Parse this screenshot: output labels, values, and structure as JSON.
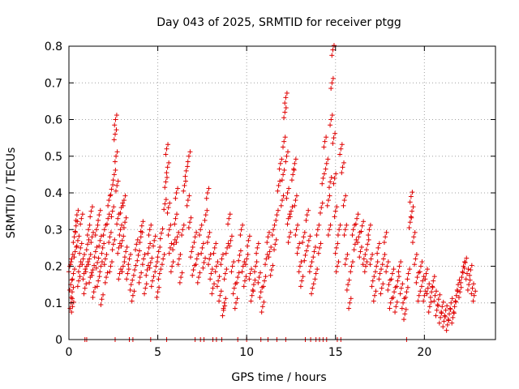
{
  "chart_data": {
    "type": "scatter",
    "title": "Day 043 of 2025, SRMTID for receiver ptgg",
    "xlabel": "GPS time / hours",
    "ylabel": "SRMTID / TECUs",
    "xlim": [
      0,
      24
    ],
    "ylim": [
      0,
      0.8
    ],
    "xticks": [
      0,
      5,
      10,
      15,
      20
    ],
    "yticks": [
      0,
      0.1,
      0.2,
      0.3,
      0.4,
      0.5,
      0.6,
      0.7,
      0.8
    ],
    "grid": true,
    "marker": "plus",
    "series_color": "#e00000",
    "note": "Dense scatter of SRMTID values; points listed as [hour, TECU] approximations.",
    "points": [
      [
        0.05,
        0.2
      ],
      [
        0.1,
        0.15
      ],
      [
        0.12,
        0.1
      ],
      [
        0.15,
        0.22
      ],
      [
        0.18,
        0.13
      ],
      [
        0.2,
        0.09
      ],
      [
        0.25,
        0.18
      ],
      [
        0.3,
        0.28
      ],
      [
        0.35,
        0.24
      ],
      [
        0.4,
        0.31
      ],
      [
        0.45,
        0.34
      ],
      [
        0.5,
        0.27
      ],
      [
        0.55,
        0.16
      ],
      [
        0.6,
        0.2
      ],
      [
        0.65,
        0.25
      ],
      [
        0.7,
        0.33
      ],
      [
        0.8,
        0.22
      ],
      [
        0.85,
        0.18
      ],
      [
        0.9,
        0.14
      ],
      [
        1.0,
        0.2
      ],
      [
        1.05,
        0.26
      ],
      [
        1.1,
        0.3
      ],
      [
        1.15,
        0.22
      ],
      [
        1.2,
        0.17
      ],
      [
        1.25,
        0.35
      ],
      [
        1.3,
        0.28
      ],
      [
        1.35,
        0.19
      ],
      [
        1.4,
        0.13
      ],
      [
        1.5,
        0.24
      ],
      [
        1.55,
        0.3
      ],
      [
        1.6,
        0.21
      ],
      [
        1.65,
        0.16
      ],
      [
        1.7,
        0.34
      ],
      [
        1.75,
        0.27
      ],
      [
        1.8,
        0.2
      ],
      [
        1.85,
        0.11
      ],
      [
        1.9,
        0.25
      ],
      [
        2.0,
        0.3
      ],
      [
        2.05,
        0.22
      ],
      [
        2.1,
        0.17
      ],
      [
        2.2,
        0.33
      ],
      [
        2.25,
        0.38
      ],
      [
        2.3,
        0.28
      ],
      [
        2.35,
        0.2
      ],
      [
        2.4,
        0.41
      ],
      [
        2.45,
        0.35
      ],
      [
        2.5,
        0.26
      ],
      [
        2.55,
        0.45
      ],
      [
        2.6,
        0.56
      ],
      [
        2.62,
        0.6
      ],
      [
        2.65,
        0.5
      ],
      [
        2.7,
        0.42
      ],
      [
        2.75,
        0.33
      ],
      [
        2.8,
        0.25
      ],
      [
        2.85,
        0.18
      ],
      [
        2.9,
        0.3
      ],
      [
        2.95,
        0.36
      ],
      [
        3.0,
        0.27
      ],
      [
        3.05,
        0.2
      ],
      [
        3.1,
        0.38
      ],
      [
        3.15,
        0.32
      ],
      [
        3.2,
        0.24
      ],
      [
        3.3,
        0.18
      ],
      [
        3.4,
        0.22
      ],
      [
        3.5,
        0.15
      ],
      [
        3.6,
        0.12
      ],
      [
        3.7,
        0.19
      ],
      [
        3.8,
        0.26
      ],
      [
        3.9,
        0.23
      ],
      [
        4.0,
        0.17
      ],
      [
        4.05,
        0.28
      ],
      [
        4.1,
        0.31
      ],
      [
        4.2,
        0.22
      ],
      [
        4.3,
        0.14
      ],
      [
        4.4,
        0.19
      ],
      [
        4.5,
        0.25
      ],
      [
        4.55,
        0.3
      ],
      [
        4.6,
        0.21
      ],
      [
        4.7,
        0.16
      ],
      [
        4.8,
        0.27
      ],
      [
        4.9,
        0.2
      ],
      [
        5.0,
        0.13
      ],
      [
        5.05,
        0.24
      ],
      [
        5.1,
        0.18
      ],
      [
        5.2,
        0.29
      ],
      [
        5.3,
        0.22
      ],
      [
        5.4,
        0.37
      ],
      [
        5.45,
        0.43
      ],
      [
        5.5,
        0.52
      ],
      [
        5.55,
        0.47
      ],
      [
        5.6,
        0.36
      ],
      [
        5.65,
        0.3
      ],
      [
        5.7,
        0.25
      ],
      [
        5.8,
        0.2
      ],
      [
        5.9,
        0.26
      ],
      [
        6.0,
        0.33
      ],
      [
        6.05,
        0.4
      ],
      [
        6.1,
        0.28
      ],
      [
        6.2,
        0.22
      ],
      [
        6.3,
        0.17
      ],
      [
        6.4,
        0.3
      ],
      [
        6.5,
        0.42
      ],
      [
        6.6,
        0.46
      ],
      [
        6.7,
        0.38
      ],
      [
        6.75,
        0.5
      ],
      [
        6.8,
        0.32
      ],
      [
        6.9,
        0.24
      ],
      [
        7.0,
        0.19
      ],
      [
        7.1,
        0.28
      ],
      [
        7.2,
        0.22
      ],
      [
        7.3,
        0.17
      ],
      [
        7.4,
        0.3
      ],
      [
        7.5,
        0.25
      ],
      [
        7.6,
        0.21
      ],
      [
        7.7,
        0.34
      ],
      [
        7.8,
        0.4
      ],
      [
        7.85,
        0.28
      ],
      [
        7.9,
        0.22
      ],
      [
        8.0,
        0.18
      ],
      [
        8.1,
        0.14
      ],
      [
        8.2,
        0.25
      ],
      [
        8.3,
        0.2
      ],
      [
        8.4,
        0.16
      ],
      [
        8.5,
        0.12
      ],
      [
        8.6,
        0.22
      ],
      [
        8.7,
        0.08
      ],
      [
        8.75,
        0.1
      ],
      [
        8.8,
        0.18
      ],
      [
        8.9,
        0.25
      ],
      [
        9.0,
        0.33
      ],
      [
        9.1,
        0.27
      ],
      [
        9.2,
        0.2
      ],
      [
        9.3,
        0.14
      ],
      [
        9.4,
        0.1
      ],
      [
        9.5,
        0.17
      ],
      [
        9.6,
        0.23
      ],
      [
        9.7,
        0.3
      ],
      [
        9.8,
        0.2
      ],
      [
        9.9,
        0.16
      ],
      [
        10.0,
        0.22
      ],
      [
        10.1,
        0.27
      ],
      [
        10.2,
        0.18
      ],
      [
        10.3,
        0.12
      ],
      [
        10.4,
        0.15
      ],
      [
        10.5,
        0.2
      ],
      [
        10.6,
        0.25
      ],
      [
        10.7,
        0.17
      ],
      [
        10.8,
        0.13
      ],
      [
        10.9,
        0.09
      ],
      [
        11.0,
        0.16
      ],
      [
        11.1,
        0.22
      ],
      [
        11.2,
        0.28
      ],
      [
        11.3,
        0.24
      ],
      [
        11.4,
        0.19
      ],
      [
        11.5,
        0.3
      ],
      [
        11.6,
        0.26
      ],
      [
        11.7,
        0.34
      ],
      [
        11.8,
        0.42
      ],
      [
        11.9,
        0.48
      ],
      [
        12.0,
        0.38
      ],
      [
        12.05,
        0.45
      ],
      [
        12.1,
        0.54
      ],
      [
        12.15,
        0.62
      ],
      [
        12.2,
        0.66
      ],
      [
        12.25,
        0.5
      ],
      [
        12.3,
        0.4
      ],
      [
        12.35,
        0.33
      ],
      [
        12.4,
        0.28
      ],
      [
        12.5,
        0.35
      ],
      [
        12.6,
        0.45
      ],
      [
        12.7,
        0.48
      ],
      [
        12.75,
        0.38
      ],
      [
        12.8,
        0.3
      ],
      [
        12.9,
        0.25
      ],
      [
        13.0,
        0.2
      ],
      [
        13.1,
        0.16
      ],
      [
        13.2,
        0.28
      ],
      [
        13.3,
        0.23
      ],
      [
        13.4,
        0.34
      ],
      [
        13.5,
        0.27
      ],
      [
        13.6,
        0.2
      ],
      [
        13.7,
        0.14
      ],
      [
        13.8,
        0.24
      ],
      [
        13.9,
        0.18
      ],
      [
        14.0,
        0.3
      ],
      [
        14.1,
        0.25
      ],
      [
        14.2,
        0.36
      ],
      [
        14.3,
        0.44
      ],
      [
        14.4,
        0.54
      ],
      [
        14.5,
        0.48
      ],
      [
        14.6,
        0.38
      ],
      [
        14.65,
        0.3
      ],
      [
        14.7,
        0.43
      ],
      [
        14.75,
        0.6
      ],
      [
        14.8,
        0.7
      ],
      [
        14.85,
        0.79
      ],
      [
        14.9,
        0.55
      ],
      [
        14.95,
        0.44
      ],
      [
        15.0,
        0.35
      ],
      [
        15.05,
        0.25
      ],
      [
        15.1,
        0.2
      ],
      [
        15.2,
        0.3
      ],
      [
        15.3,
        0.52
      ],
      [
        15.4,
        0.47
      ],
      [
        15.5,
        0.38
      ],
      [
        15.55,
        0.3
      ],
      [
        15.6,
        0.22
      ],
      [
        15.7,
        0.15
      ],
      [
        15.8,
        0.1
      ],
      [
        15.9,
        0.2
      ],
      [
        16.0,
        0.3
      ],
      [
        16.1,
        0.26
      ],
      [
        16.2,
        0.33
      ],
      [
        16.3,
        0.28
      ],
      [
        16.4,
        0.24
      ],
      [
        16.5,
        0.31
      ],
      [
        16.6,
        0.22
      ],
      [
        16.7,
        0.2
      ],
      [
        16.8,
        0.26
      ],
      [
        16.9,
        0.3
      ],
      [
        17.0,
        0.22
      ],
      [
        17.1,
        0.16
      ],
      [
        17.2,
        0.12
      ],
      [
        17.3,
        0.2
      ],
      [
        17.4,
        0.25
      ],
      [
        17.5,
        0.18
      ],
      [
        17.6,
        0.14
      ],
      [
        17.7,
        0.22
      ],
      [
        17.8,
        0.28
      ],
      [
        17.9,
        0.2
      ],
      [
        18.0,
        0.15
      ],
      [
        18.1,
        0.1
      ],
      [
        18.2,
        0.18
      ],
      [
        18.3,
        0.13
      ],
      [
        18.4,
        0.09
      ],
      [
        18.5,
        0.16
      ],
      [
        18.6,
        0.2
      ],
      [
        18.7,
        0.14
      ],
      [
        18.8,
        0.1
      ],
      [
        18.9,
        0.07
      ],
      [
        19.0,
        0.13
      ],
      [
        19.1,
        0.18
      ],
      [
        19.2,
        0.32
      ],
      [
        19.25,
        0.39
      ],
      [
        19.3,
        0.35
      ],
      [
        19.4,
        0.28
      ],
      [
        19.5,
        0.22
      ],
      [
        19.6,
        0.17
      ],
      [
        19.7,
        0.12
      ],
      [
        19.8,
        0.2
      ],
      [
        19.9,
        0.16
      ],
      [
        20.0,
        0.12
      ],
      [
        20.1,
        0.18
      ],
      [
        20.2,
        0.14
      ],
      [
        20.3,
        0.09
      ],
      [
        20.4,
        0.13
      ],
      [
        20.5,
        0.16
      ],
      [
        20.6,
        0.12
      ],
      [
        20.7,
        0.08
      ],
      [
        20.8,
        0.11
      ],
      [
        20.9,
        0.06
      ],
      [
        21.0,
        0.09
      ],
      [
        21.1,
        0.05
      ],
      [
        21.2,
        0.08
      ],
      [
        21.3,
        0.04
      ],
      [
        21.4,
        0.07
      ],
      [
        21.5,
        0.1
      ],
      [
        21.6,
        0.06
      ],
      [
        21.7,
        0.09
      ],
      [
        21.8,
        0.12
      ],
      [
        21.9,
        0.15
      ],
      [
        22.0,
        0.13
      ],
      [
        22.1,
        0.17
      ],
      [
        22.2,
        0.2
      ],
      [
        22.3,
        0.21
      ],
      [
        22.4,
        0.18
      ],
      [
        22.5,
        0.15
      ],
      [
        22.6,
        0.19
      ],
      [
        22.7,
        0.14
      ],
      [
        22.8,
        0.12
      ]
    ],
    "zero_points": [
      0.9,
      1.0,
      2.6,
      3.4,
      3.6,
      4.6,
      5.5,
      7.1,
      7.4,
      7.6,
      8.1,
      8.3,
      8.6,
      9.5,
      10.0,
      10.8,
      11.2,
      11.7,
      12.2,
      13.3,
      13.6,
      13.9,
      14.1,
      14.3,
      14.5,
      15.1,
      15.3,
      19.0
    ]
  }
}
